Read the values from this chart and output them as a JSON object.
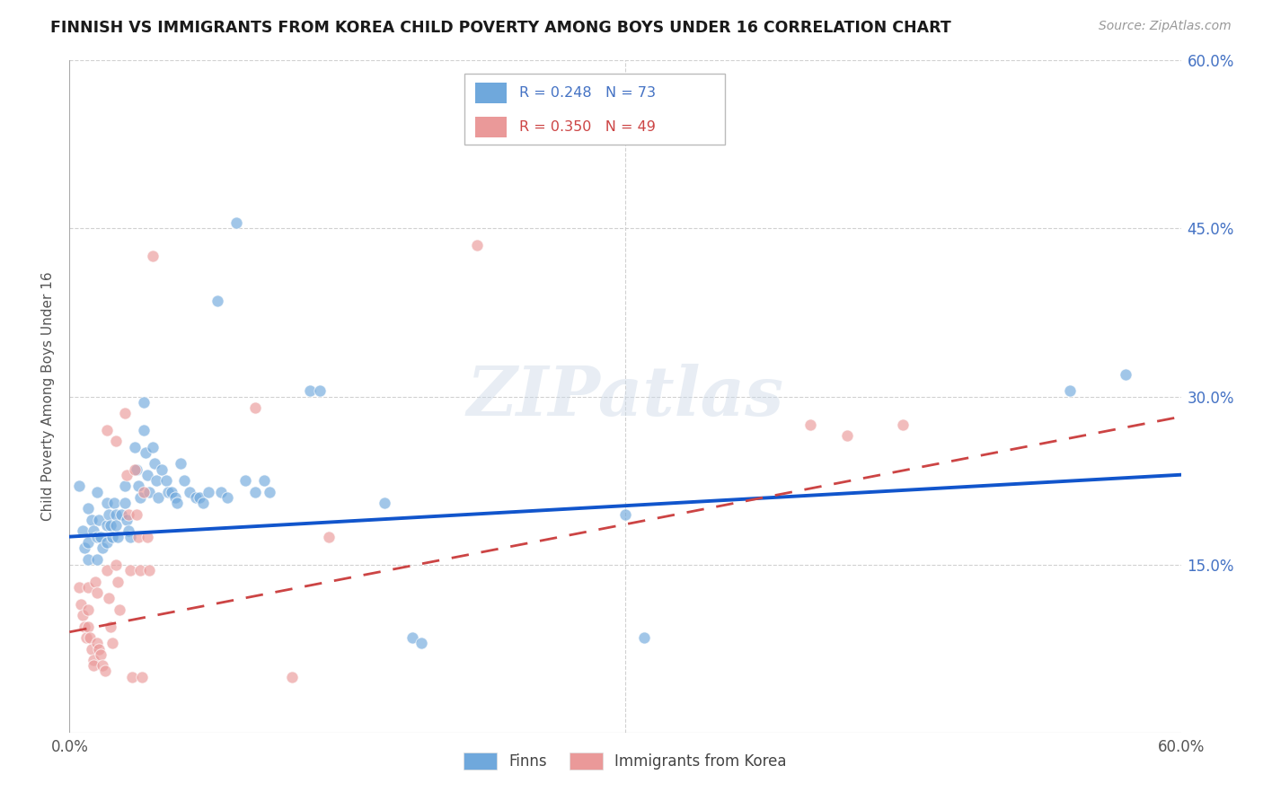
{
  "title": "FINNISH VS IMMIGRANTS FROM KOREA CHILD POVERTY AMONG BOYS UNDER 16 CORRELATION CHART",
  "source": "Source: ZipAtlas.com",
  "ylabel": "Child Poverty Among Boys Under 16",
  "xlim": [
    0.0,
    0.6
  ],
  "ylim": [
    0.0,
    0.6
  ],
  "xticks": [
    0.0,
    0.6
  ],
  "xticklabels": [
    "0.0%",
    "60.0%"
  ],
  "right_yticklabels": [
    "15.0%",
    "30.0%",
    "45.0%",
    "60.0%"
  ],
  "right_yticks": [
    0.15,
    0.3,
    0.45,
    0.6
  ],
  "finns_color": "#6fa8dc",
  "korea_color": "#ea9999",
  "finns_line_color": "#1155cc",
  "korea_line_color": "#cc4444",
  "finns_R": 0.248,
  "finns_N": 73,
  "korea_R": 0.35,
  "korea_N": 49,
  "finns_intercept": 0.175,
  "finns_slope": 0.092,
  "korea_intercept": 0.09,
  "korea_slope": 0.32,
  "watermark": "ZIPatlas",
  "background_color": "#ffffff",
  "grid_color": "#cccccc",
  "finns_points": [
    [
      0.005,
      0.22
    ],
    [
      0.007,
      0.18
    ],
    [
      0.008,
      0.165
    ],
    [
      0.01,
      0.2
    ],
    [
      0.01,
      0.17
    ],
    [
      0.01,
      0.155
    ],
    [
      0.012,
      0.19
    ],
    [
      0.013,
      0.18
    ],
    [
      0.015,
      0.215
    ],
    [
      0.015,
      0.175
    ],
    [
      0.015,
      0.155
    ],
    [
      0.016,
      0.19
    ],
    [
      0.017,
      0.175
    ],
    [
      0.018,
      0.165
    ],
    [
      0.02,
      0.205
    ],
    [
      0.02,
      0.185
    ],
    [
      0.02,
      0.17
    ],
    [
      0.021,
      0.195
    ],
    [
      0.022,
      0.185
    ],
    [
      0.023,
      0.175
    ],
    [
      0.024,
      0.205
    ],
    [
      0.025,
      0.195
    ],
    [
      0.025,
      0.185
    ],
    [
      0.026,
      0.175
    ],
    [
      0.028,
      0.195
    ],
    [
      0.03,
      0.22
    ],
    [
      0.03,
      0.205
    ],
    [
      0.031,
      0.19
    ],
    [
      0.032,
      0.18
    ],
    [
      0.033,
      0.175
    ],
    [
      0.035,
      0.255
    ],
    [
      0.036,
      0.235
    ],
    [
      0.037,
      0.22
    ],
    [
      0.038,
      0.21
    ],
    [
      0.04,
      0.295
    ],
    [
      0.04,
      0.27
    ],
    [
      0.041,
      0.25
    ],
    [
      0.042,
      0.23
    ],
    [
      0.043,
      0.215
    ],
    [
      0.045,
      0.255
    ],
    [
      0.046,
      0.24
    ],
    [
      0.047,
      0.225
    ],
    [
      0.048,
      0.21
    ],
    [
      0.05,
      0.235
    ],
    [
      0.052,
      0.225
    ],
    [
      0.053,
      0.215
    ],
    [
      0.055,
      0.215
    ],
    [
      0.057,
      0.21
    ],
    [
      0.058,
      0.205
    ],
    [
      0.06,
      0.24
    ],
    [
      0.062,
      0.225
    ],
    [
      0.065,
      0.215
    ],
    [
      0.068,
      0.21
    ],
    [
      0.07,
      0.21
    ],
    [
      0.072,
      0.205
    ],
    [
      0.075,
      0.215
    ],
    [
      0.08,
      0.385
    ],
    [
      0.082,
      0.215
    ],
    [
      0.085,
      0.21
    ],
    [
      0.09,
      0.455
    ],
    [
      0.095,
      0.225
    ],
    [
      0.1,
      0.215
    ],
    [
      0.105,
      0.225
    ],
    [
      0.108,
      0.215
    ],
    [
      0.13,
      0.305
    ],
    [
      0.135,
      0.305
    ],
    [
      0.17,
      0.205
    ],
    [
      0.185,
      0.085
    ],
    [
      0.19,
      0.08
    ],
    [
      0.3,
      0.195
    ],
    [
      0.31,
      0.085
    ],
    [
      0.54,
      0.305
    ],
    [
      0.57,
      0.32
    ]
  ],
  "korea_points": [
    [
      0.005,
      0.13
    ],
    [
      0.006,
      0.115
    ],
    [
      0.007,
      0.105
    ],
    [
      0.008,
      0.095
    ],
    [
      0.009,
      0.085
    ],
    [
      0.01,
      0.13
    ],
    [
      0.01,
      0.11
    ],
    [
      0.01,
      0.095
    ],
    [
      0.011,
      0.085
    ],
    [
      0.012,
      0.075
    ],
    [
      0.013,
      0.065
    ],
    [
      0.013,
      0.06
    ],
    [
      0.014,
      0.135
    ],
    [
      0.015,
      0.125
    ],
    [
      0.015,
      0.08
    ],
    [
      0.016,
      0.075
    ],
    [
      0.017,
      0.07
    ],
    [
      0.018,
      0.06
    ],
    [
      0.019,
      0.055
    ],
    [
      0.02,
      0.27
    ],
    [
      0.02,
      0.145
    ],
    [
      0.021,
      0.12
    ],
    [
      0.022,
      0.095
    ],
    [
      0.023,
      0.08
    ],
    [
      0.025,
      0.26
    ],
    [
      0.025,
      0.15
    ],
    [
      0.026,
      0.135
    ],
    [
      0.027,
      0.11
    ],
    [
      0.03,
      0.285
    ],
    [
      0.031,
      0.23
    ],
    [
      0.032,
      0.195
    ],
    [
      0.033,
      0.145
    ],
    [
      0.034,
      0.05
    ],
    [
      0.035,
      0.235
    ],
    [
      0.036,
      0.195
    ],
    [
      0.037,
      0.175
    ],
    [
      0.038,
      0.145
    ],
    [
      0.039,
      0.05
    ],
    [
      0.04,
      0.215
    ],
    [
      0.042,
      0.175
    ],
    [
      0.043,
      0.145
    ],
    [
      0.045,
      0.425
    ],
    [
      0.1,
      0.29
    ],
    [
      0.12,
      0.05
    ],
    [
      0.14,
      0.175
    ],
    [
      0.22,
      0.435
    ],
    [
      0.4,
      0.275
    ],
    [
      0.42,
      0.265
    ],
    [
      0.45,
      0.275
    ]
  ]
}
